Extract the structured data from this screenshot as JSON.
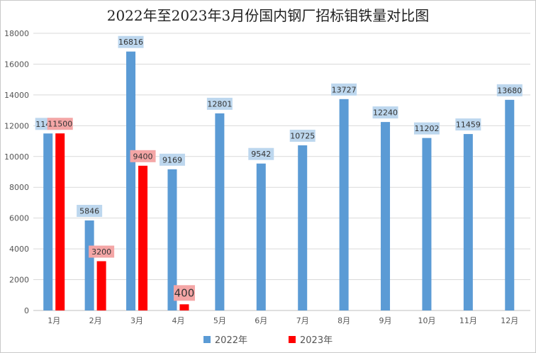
{
  "chart_data": {
    "type": "bar",
    "title": "2022年至2023年3月份国内钢厂招标钼铁量对比图",
    "categories": [
      "1月",
      "2月",
      "3月",
      "4月",
      "5月",
      "6月",
      "7月",
      "8月",
      "9月",
      "10月",
      "11月",
      "12月"
    ],
    "series": [
      {
        "name": "2022年",
        "color": "#5b9bd5",
        "label_bg": "#bdd7ee",
        "values": [
          11495,
          5846,
          16816,
          9169,
          12801,
          9542,
          10725,
          13727,
          12240,
          11202,
          11459,
          13680
        ]
      },
      {
        "name": "2023年",
        "color": "#ff0000",
        "label_bg": "#f4a6a6",
        "values": [
          11500,
          3200,
          9400,
          400,
          null,
          null,
          null,
          null,
          null,
          null,
          null,
          null
        ]
      }
    ],
    "ylim": [
      0,
      18000
    ],
    "yticks": [
      0,
      2000,
      4000,
      6000,
      8000,
      10000,
      12000,
      14000,
      16000,
      18000
    ],
    "grid": true,
    "legend_position": "bottom"
  }
}
